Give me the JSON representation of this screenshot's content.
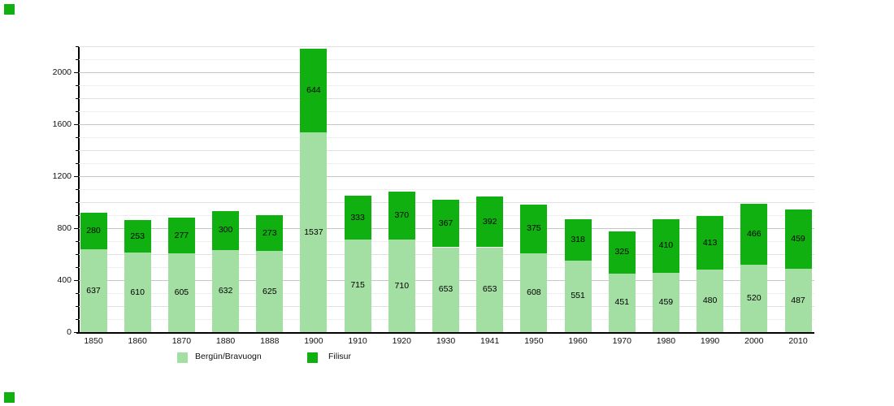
{
  "chart_data": {
    "type": "bar",
    "stacked": true,
    "title": "",
    "xlabel": "",
    "ylabel": "",
    "categories": [
      "1850",
      "1860",
      "1870",
      "1880",
      "1888",
      "1900",
      "1910",
      "1920",
      "1930",
      "1941",
      "1950",
      "1960",
      "1970",
      "1980",
      "1990",
      "2000",
      "2010"
    ],
    "series": [
      {
        "name": "Bergün/Bravuogn",
        "color": "#a3dea3",
        "values": [
          637,
          610,
          605,
          632,
          625,
          1537,
          715,
          710,
          653,
          653,
          608,
          551,
          451,
          459,
          480,
          520,
          487
        ]
      },
      {
        "name": "Filisur",
        "color": "#10b010",
        "values": [
          280,
          253,
          277,
          300,
          273,
          644,
          333,
          370,
          367,
          392,
          375,
          318,
          325,
          410,
          413,
          466,
          459
        ]
      }
    ],
    "y_tick_labels": [
      "0",
      "400",
      "800",
      "1200",
      "1600",
      "2000"
    ],
    "y_tick_values": [
      0,
      400,
      800,
      1200,
      1600,
      2000
    ],
    "y_minor_step": 100,
    "ylim": [
      0,
      2200
    ],
    "grid": true,
    "legend_position": "bottom"
  },
  "colors": {
    "grid_major": "#c6c6c6",
    "grid_mid": "#e0e0e0",
    "grid_minor": "#eeeeee",
    "axis": "#000000",
    "corner_marker": "#10b010"
  },
  "legend": {
    "item1": "Bergün/Bravuogn",
    "item2": "Filisur"
  }
}
